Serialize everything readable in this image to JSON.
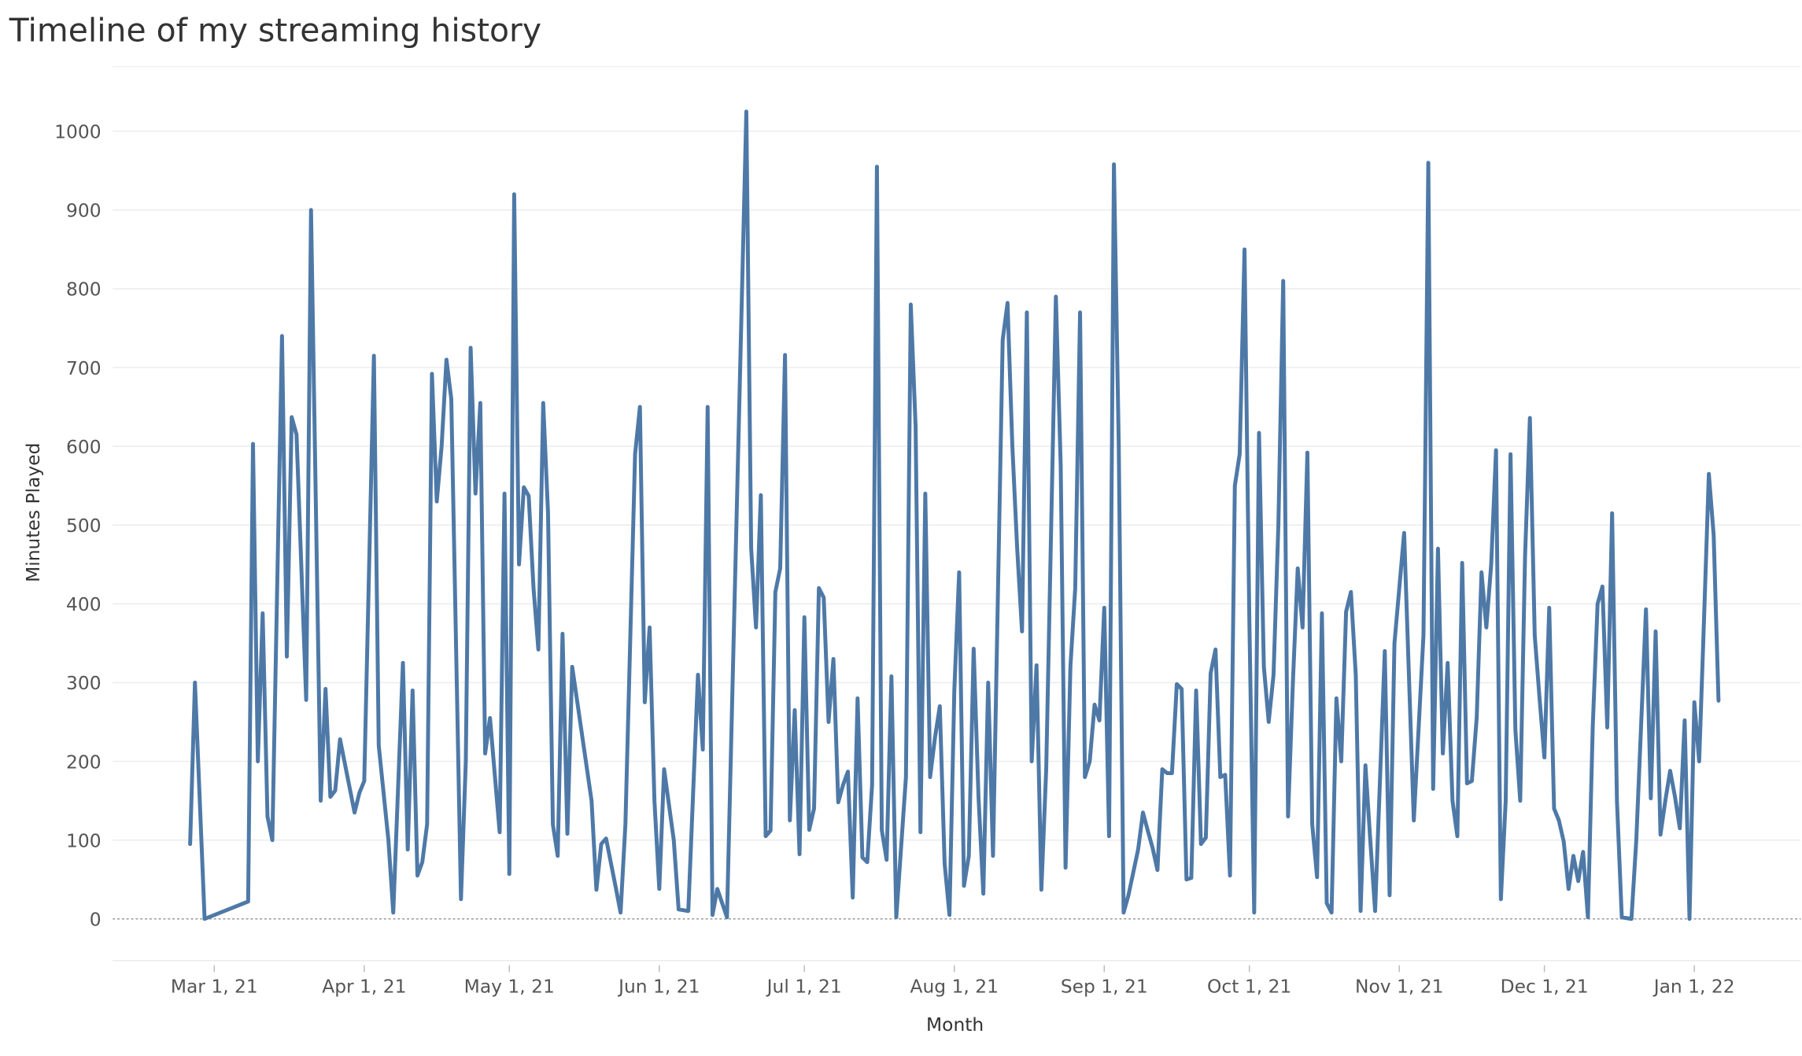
{
  "chart_data": {
    "type": "line",
    "title": "Timeline of my streaming history",
    "x_label": "Month",
    "y_label": "Minutes Played",
    "xlim": [
      "2021-02-08",
      "2022-01-23"
    ],
    "ylim": [
      -53,
      1082
    ],
    "yticks": [
      0,
      100,
      200,
      300,
      400,
      500,
      600,
      700,
      800,
      900,
      1000
    ],
    "xticks": [
      {
        "value": "2021-03-01",
        "label": "Mar 1, 21"
      },
      {
        "value": "2021-04-01",
        "label": "Apr 1, 21"
      },
      {
        "value": "2021-05-01",
        "label": "May 1, 21"
      },
      {
        "value": "2021-06-01",
        "label": "Jun 1, 21"
      },
      {
        "value": "2021-07-01",
        "label": "Jul 1, 21"
      },
      {
        "value": "2021-08-01",
        "label": "Aug 1, 21"
      },
      {
        "value": "2021-09-01",
        "label": "Sep 1, 21"
      },
      {
        "value": "2021-10-01",
        "label": "Oct 1, 21"
      },
      {
        "value": "2021-11-01",
        "label": "Nov 1, 21"
      },
      {
        "value": "2021-12-01",
        "label": "Dec 1, 21"
      },
      {
        "value": "2022-01-01",
        "label": "Jan 1, 22"
      }
    ],
    "grid": true,
    "x": [
      "2021-02-24",
      "2021-02-25",
      "2021-02-27",
      "2021-03-08",
      "2021-03-09",
      "2021-03-10",
      "2021-03-11",
      "2021-03-12",
      "2021-03-13",
      "2021-03-15",
      "2021-03-16",
      "2021-03-17",
      "2021-03-18",
      "2021-03-20",
      "2021-03-21",
      "2021-03-23",
      "2021-03-24",
      "2021-03-25",
      "2021-03-26",
      "2021-03-27",
      "2021-03-30",
      "2021-03-31",
      "2021-04-01",
      "2021-04-03",
      "2021-04-04",
      "2021-04-06",
      "2021-04-07",
      "2021-04-09",
      "2021-04-10",
      "2021-04-11",
      "2021-04-12",
      "2021-04-13",
      "2021-04-14",
      "2021-04-15",
      "2021-04-16",
      "2021-04-17",
      "2021-04-18",
      "2021-04-19",
      "2021-04-21",
      "2021-04-22",
      "2021-04-23",
      "2021-04-24",
      "2021-04-25",
      "2021-04-26",
      "2021-04-27",
      "2021-04-29",
      "2021-04-30",
      "2021-05-01",
      "2021-05-02",
      "2021-05-03",
      "2021-05-04",
      "2021-05-05",
      "2021-05-06",
      "2021-05-07",
      "2021-05-08",
      "2021-05-09",
      "2021-05-10",
      "2021-05-11",
      "2021-05-12",
      "2021-05-13",
      "2021-05-14",
      "2021-05-18",
      "2021-05-19",
      "2021-05-20",
      "2021-05-21",
      "2021-05-23",
      "2021-05-24",
      "2021-05-25",
      "2021-05-27",
      "2021-05-28",
      "2021-05-29",
      "2021-05-30",
      "2021-05-31",
      "2021-06-01",
      "2021-06-02",
      "2021-06-04",
      "2021-06-05",
      "2021-06-07",
      "2021-06-09",
      "2021-06-10",
      "2021-06-11",
      "2021-06-12",
      "2021-06-13",
      "2021-06-15",
      "2021-06-19",
      "2021-06-20",
      "2021-06-21",
      "2021-06-22",
      "2021-06-23",
      "2021-06-24",
      "2021-06-25",
      "2021-06-26",
      "2021-06-27",
      "2021-06-28",
      "2021-06-29",
      "2021-06-30",
      "2021-07-01",
      "2021-07-02",
      "2021-07-03",
      "2021-07-04",
      "2021-07-05",
      "2021-07-06",
      "2021-07-07",
      "2021-07-08",
      "2021-07-09",
      "2021-07-10",
      "2021-07-11",
      "2021-07-12",
      "2021-07-13",
      "2021-07-14",
      "2021-07-15",
      "2021-07-16",
      "2021-07-17",
      "2021-07-18",
      "2021-07-19",
      "2021-07-20",
      "2021-07-22",
      "2021-07-23",
      "2021-07-24",
      "2021-07-25",
      "2021-07-26",
      "2021-07-27",
      "2021-07-28",
      "2021-07-29",
      "2021-07-30",
      "2021-07-31",
      "2021-08-01",
      "2021-08-02",
      "2021-08-03",
      "2021-08-04",
      "2021-08-05",
      "2021-08-06",
      "2021-08-07",
      "2021-08-08",
      "2021-08-09",
      "2021-08-11",
      "2021-08-12",
      "2021-08-13",
      "2021-08-14",
      "2021-08-15",
      "2021-08-16",
      "2021-08-17",
      "2021-08-18",
      "2021-08-19",
      "2021-08-20",
      "2021-08-22",
      "2021-08-23",
      "2021-08-24",
      "2021-08-25",
      "2021-08-26",
      "2021-08-27",
      "2021-08-28",
      "2021-08-29",
      "2021-08-30",
      "2021-08-31",
      "2021-09-01",
      "2021-09-02",
      "2021-09-03",
      "2021-09-04",
      "2021-09-05",
      "2021-09-06",
      "2021-09-08",
      "2021-09-09",
      "2021-09-10",
      "2021-09-11",
      "2021-09-12",
      "2021-09-13",
      "2021-09-14",
      "2021-09-15",
      "2021-09-16",
      "2021-09-17",
      "2021-09-18",
      "2021-09-19",
      "2021-09-20",
      "2021-09-21",
      "2021-09-22",
      "2021-09-23",
      "2021-09-24",
      "2021-09-25",
      "2021-09-26",
      "2021-09-27",
      "2021-09-28",
      "2021-09-29",
      "2021-09-30",
      "2021-10-01",
      "2021-10-02",
      "2021-10-03",
      "2021-10-04",
      "2021-10-05",
      "2021-10-06",
      "2021-10-07",
      "2021-10-08",
      "2021-10-09",
      "2021-10-10",
      "2021-10-11",
      "2021-10-12",
      "2021-10-13",
      "2021-10-14",
      "2021-10-15",
      "2021-10-16",
      "2021-10-17",
      "2021-10-18",
      "2021-10-19",
      "2021-10-20",
      "2021-10-21",
      "2021-10-22",
      "2021-10-23",
      "2021-10-24",
      "2021-10-25",
      "2021-10-26",
      "2021-10-27",
      "2021-10-29",
      "2021-10-30",
      "2021-10-31",
      "2021-11-02",
      "2021-11-04",
      "2021-11-06",
      "2021-11-07",
      "2021-11-08",
      "2021-11-09",
      "2021-11-10",
      "2021-11-11",
      "2021-11-12",
      "2021-11-13",
      "2021-11-14",
      "2021-11-15",
      "2021-11-16",
      "2021-11-17",
      "2021-11-18",
      "2021-11-19",
      "2021-11-20",
      "2021-11-21",
      "2021-11-22",
      "2021-11-23",
      "2021-11-24",
      "2021-11-25",
      "2021-11-26",
      "2021-11-27",
      "2021-11-28",
      "2021-11-29",
      "2021-11-30",
      "2021-12-01",
      "2021-12-02",
      "2021-12-03",
      "2021-12-04",
      "2021-12-05",
      "2021-12-06",
      "2021-12-07",
      "2021-12-08",
      "2021-12-09",
      "2021-12-10",
      "2021-12-11",
      "2021-12-12",
      "2021-12-13",
      "2021-12-14",
      "2021-12-15",
      "2021-12-16",
      "2021-12-17",
      "2021-12-19",
      "2021-12-20",
      "2021-12-22",
      "2021-12-23",
      "2021-12-24",
      "2021-12-25",
      "2021-12-26",
      "2021-12-27",
      "2021-12-28",
      "2021-12-29",
      "2021-12-30",
      "2021-12-31",
      "2022-01-01",
      "2022-01-02",
      "2022-01-03",
      "2022-01-04",
      "2022-01-05",
      "2022-01-06"
    ],
    "series": [
      {
        "name": "Minutes Played",
        "color": "#4e79a7",
        "values": [
          95,
          300,
          0,
          22,
          603,
          200,
          388,
          130,
          100,
          740,
          333,
          637,
          615,
          278,
          900,
          150,
          292,
          155,
          163,
          228,
          135,
          160,
          175,
          715,
          220,
          100,
          8,
          325,
          88,
          290,
          55,
          72,
          120,
          692,
          530,
          600,
          710,
          660,
          25,
          200,
          725,
          540,
          655,
          210,
          255,
          110,
          540,
          57,
          920,
          450,
          548,
          537,
          420,
          342,
          655,
          515,
          120,
          80,
          362,
          108,
          320,
          150,
          37,
          95,
          102,
          40,
          8,
          120,
          590,
          650,
          275,
          370,
          150,
          38,
          190,
          100,
          12,
          10,
          310,
          215,
          650,
          5,
          38,
          2,
          1025,
          470,
          370,
          538,
          105,
          112,
          415,
          445,
          716,
          125,
          265,
          82,
          383,
          113,
          140,
          420,
          408,
          250,
          330,
          148,
          170,
          187,
          27,
          280,
          78,
          72,
          170,
          955,
          113,
          75,
          308,
          2,
          180,
          780,
          625,
          110,
          540,
          180,
          230,
          270,
          70,
          5,
          290,
          440,
          42,
          80,
          343,
          155,
          32,
          300,
          80,
          735,
          782,
          600,
          470,
          365,
          770,
          200,
          322,
          37,
          190,
          790,
          575,
          65,
          320,
          420,
          770,
          180,
          200,
          272,
          252,
          395,
          105,
          958,
          600,
          8,
          30,
          88,
          135,
          112,
          90,
          62,
          190,
          185,
          185,
          298,
          292,
          50,
          52,
          290,
          95,
          103,
          312,
          342,
          180,
          183,
          55,
          550,
          590,
          850,
          380,
          8,
          617,
          320,
          250,
          310,
          500,
          810,
          130,
          300,
          445,
          370,
          592,
          120,
          53,
          388,
          20,
          8,
          280,
          200,
          390,
          415,
          310,
          10,
          195,
          100,
          10,
          340,
          30,
          350,
          490,
          125,
          360,
          960,
          165,
          470,
          210,
          325,
          150,
          105,
          452,
          172,
          175,
          255,
          440,
          370,
          450,
          595,
          25,
          150,
          590,
          240,
          150,
          460,
          636,
          360,
          280,
          205,
          395,
          140,
          125,
          98,
          38,
          80,
          48,
          85,
          2,
          245,
          400,
          422,
          243,
          515,
          150,
          2,
          0,
          100,
          393,
          153,
          365,
          107,
          150,
          188,
          155,
          115,
          252,
          0,
          275,
          200,
          380,
          565,
          487,
          277
        ]
      }
    ]
  }
}
